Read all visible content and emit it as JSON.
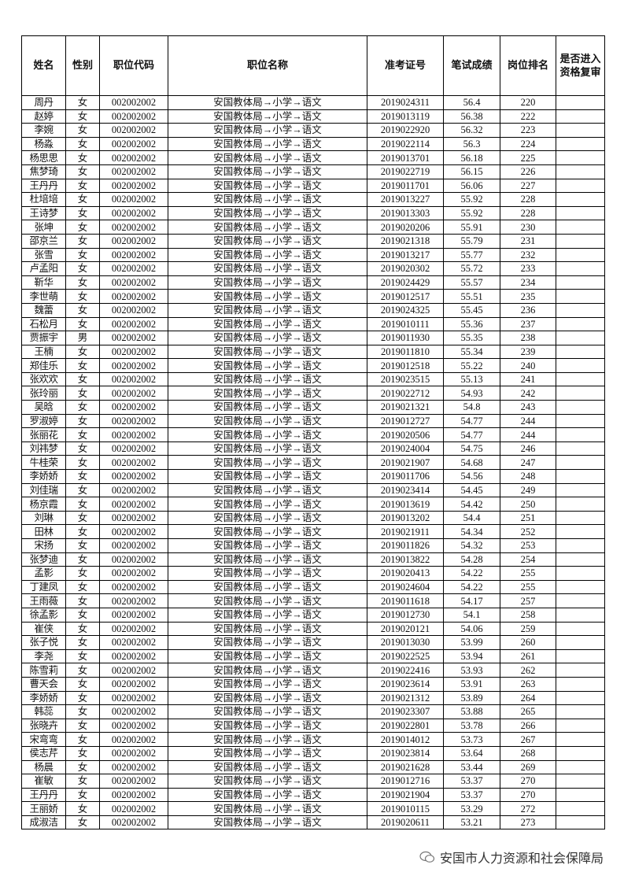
{
  "headers": [
    "姓名",
    "性别",
    "职位代码",
    "职位名称",
    "准考证号",
    "笔试成绩",
    "岗位排名",
    "是否进入资格复审"
  ],
  "rows": [
    [
      "周丹",
      "女",
      "002002002",
      "安国教体局→小学→语文",
      "2019024311",
      "56.4",
      "220",
      ""
    ],
    [
      "赵婷",
      "女",
      "002002002",
      "安国教体局→小学→语文",
      "2019013119",
      "56.38",
      "222",
      ""
    ],
    [
      "李婉",
      "女",
      "002002002",
      "安国教体局→小学→语文",
      "2019022920",
      "56.32",
      "223",
      ""
    ],
    [
      "杨淼",
      "女",
      "002002002",
      "安国教体局→小学→语文",
      "2019022114",
      "56.3",
      "224",
      ""
    ],
    [
      "杨思思",
      "女",
      "002002002",
      "安国教体局→小学→语文",
      "2019013701",
      "56.18",
      "225",
      ""
    ],
    [
      "焦梦琦",
      "女",
      "002002002",
      "安国教体局→小学→语文",
      "2019022719",
      "56.15",
      "226",
      ""
    ],
    [
      "王丹丹",
      "女",
      "002002002",
      "安国教体局→小学→语文",
      "2019011701",
      "56.06",
      "227",
      ""
    ],
    [
      "杜培培",
      "女",
      "002002002",
      "安国教体局→小学→语文",
      "2019013227",
      "55.92",
      "228",
      ""
    ],
    [
      "王诗梦",
      "女",
      "002002002",
      "安国教体局→小学→语文",
      "2019013303",
      "55.92",
      "228",
      ""
    ],
    [
      "张坤",
      "女",
      "002002002",
      "安国教体局→小学→语文",
      "2019020206",
      "55.91",
      "230",
      ""
    ],
    [
      "邵京兰",
      "女",
      "002002002",
      "安国教体局→小学→语文",
      "2019021318",
      "55.79",
      "231",
      ""
    ],
    [
      "张雪",
      "女",
      "002002002",
      "安国教体局→小学→语文",
      "2019013217",
      "55.77",
      "232",
      ""
    ],
    [
      "卢孟阳",
      "女",
      "002002002",
      "安国教体局→小学→语文",
      "2019020302",
      "55.72",
      "233",
      ""
    ],
    [
      "靳华",
      "女",
      "002002002",
      "安国教体局→小学→语文",
      "2019024429",
      "55.57",
      "234",
      ""
    ],
    [
      "李世萌",
      "女",
      "002002002",
      "安国教体局→小学→语文",
      "2019012517",
      "55.51",
      "235",
      ""
    ],
    [
      "魏蕾",
      "女",
      "002002002",
      "安国教体局→小学→语文",
      "2019024325",
      "55.45",
      "236",
      ""
    ],
    [
      "石松月",
      "女",
      "002002002",
      "安国教体局→小学→语文",
      "2019010111",
      "55.36",
      "237",
      ""
    ],
    [
      "贾振宇",
      "男",
      "002002002",
      "安国教体局→小学→语文",
      "2019011930",
      "55.35",
      "238",
      ""
    ],
    [
      "王楠",
      "女",
      "002002002",
      "安国教体局→小学→语文",
      "2019011810",
      "55.34",
      "239",
      ""
    ],
    [
      "郑佳乐",
      "女",
      "002002002",
      "安国教体局→小学→语文",
      "2019012518",
      "55.22",
      "240",
      ""
    ],
    [
      "张欢欢",
      "女",
      "002002002",
      "安国教体局→小学→语文",
      "2019023515",
      "55.13",
      "241",
      ""
    ],
    [
      "张玲丽",
      "女",
      "002002002",
      "安国教体局→小学→语文",
      "2019022712",
      "54.93",
      "242",
      ""
    ],
    [
      "吴晗",
      "女",
      "002002002",
      "安国教体局→小学→语文",
      "2019021321",
      "54.8",
      "243",
      ""
    ],
    [
      "罗淑婷",
      "女",
      "002002002",
      "安国教体局→小学→语文",
      "2019012727",
      "54.77",
      "244",
      ""
    ],
    [
      "张丽花",
      "女",
      "002002002",
      "安国教体局→小学→语文",
      "2019020506",
      "54.77",
      "244",
      ""
    ],
    [
      "刘祎梦",
      "女",
      "002002002",
      "安国教体局→小学→语文",
      "2019024004",
      "54.75",
      "246",
      ""
    ],
    [
      "牛桂荣",
      "女",
      "002002002",
      "安国教体局→小学→语文",
      "2019021907",
      "54.68",
      "247",
      ""
    ],
    [
      "李娇娇",
      "女",
      "002002002",
      "安国教体局→小学→语文",
      "2019011706",
      "54.56",
      "248",
      ""
    ],
    [
      "刘佳瑞",
      "女",
      "002002002",
      "安国教体局→小学→语文",
      "2019023414",
      "54.45",
      "249",
      ""
    ],
    [
      "杨京霞",
      "女",
      "002002002",
      "安国教体局→小学→语文",
      "2019013619",
      "54.42",
      "250",
      ""
    ],
    [
      "刘琳",
      "女",
      "002002002",
      "安国教体局→小学→语文",
      "2019013202",
      "54.4",
      "251",
      ""
    ],
    [
      "田林",
      "女",
      "002002002",
      "安国教体局→小学→语文",
      "2019021911",
      "54.34",
      "252",
      ""
    ],
    [
      "宋扬",
      "女",
      "002002002",
      "安国教体局→小学→语文",
      "2019011826",
      "54.32",
      "253",
      ""
    ],
    [
      "张梦迪",
      "女",
      "002002002",
      "安国教体局→小学→语文",
      "2019013822",
      "54.28",
      "254",
      ""
    ],
    [
      "孟影",
      "女",
      "002002002",
      "安国教体局→小学→语文",
      "2019020413",
      "54.22",
      "255",
      ""
    ],
    [
      "丁建凤",
      "女",
      "002002002",
      "安国教体局→小学→语文",
      "2019024604",
      "54.22",
      "255",
      ""
    ],
    [
      "王雨薇",
      "女",
      "002002002",
      "安国教体局→小学→语文",
      "2019011618",
      "54.17",
      "257",
      ""
    ],
    [
      "徐孟影",
      "女",
      "002002002",
      "安国教体局→小学→语文",
      "2019012730",
      "54.1",
      "258",
      ""
    ],
    [
      "崔侠",
      "女",
      "002002002",
      "安国教体局→小学→语文",
      "2019020121",
      "54.06",
      "259",
      ""
    ],
    [
      "张子悦",
      "女",
      "002002002",
      "安国教体局→小学→语文",
      "2019013030",
      "53.99",
      "260",
      ""
    ],
    [
      "李尧",
      "女",
      "002002002",
      "安国教体局→小学→语文",
      "2019022525",
      "53.94",
      "261",
      ""
    ],
    [
      "陈雪莉",
      "女",
      "002002002",
      "安国教体局→小学→语文",
      "2019022416",
      "53.93",
      "262",
      ""
    ],
    [
      "曹天会",
      "女",
      "002002002",
      "安国教体局→小学→语文",
      "2019023614",
      "53.91",
      "263",
      ""
    ],
    [
      "李娇娇",
      "女",
      "002002002",
      "安国教体局→小学→语文",
      "2019021312",
      "53.89",
      "264",
      ""
    ],
    [
      "韩蕊",
      "女",
      "002002002",
      "安国教体局→小学→语文",
      "2019023307",
      "53.88",
      "265",
      ""
    ],
    [
      "张晓卉",
      "女",
      "002002002",
      "安国教体局→小学→语文",
      "2019022801",
      "53.78",
      "266",
      ""
    ],
    [
      "宋弯弯",
      "女",
      "002002002",
      "安国教体局→小学→语文",
      "2019014012",
      "53.73",
      "267",
      ""
    ],
    [
      "侯志芹",
      "女",
      "002002002",
      "安国教体局→小学→语文",
      "2019023814",
      "53.64",
      "268",
      ""
    ],
    [
      "杨晨",
      "女",
      "002002002",
      "安国教体局→小学→语文",
      "2019021628",
      "53.44",
      "269",
      ""
    ],
    [
      "崔敏",
      "女",
      "002002002",
      "安国教体局→小学→语文",
      "2019012716",
      "53.37",
      "270",
      ""
    ],
    [
      "王丹丹",
      "女",
      "002002002",
      "安国教体局→小学→语文",
      "2019021904",
      "53.37",
      "270",
      ""
    ],
    [
      "王丽娇",
      "女",
      "002002002",
      "安国教体局→小学→语文",
      "2019010115",
      "53.29",
      "272",
      ""
    ],
    [
      "成淑洁",
      "女",
      "002002002",
      "安国教体局→小学→语文",
      "2019020611",
      "53.21",
      "273",
      ""
    ]
  ],
  "footer": {
    "source": "安国市人力资源和社会保障局",
    "icon": "wechat-icon"
  }
}
